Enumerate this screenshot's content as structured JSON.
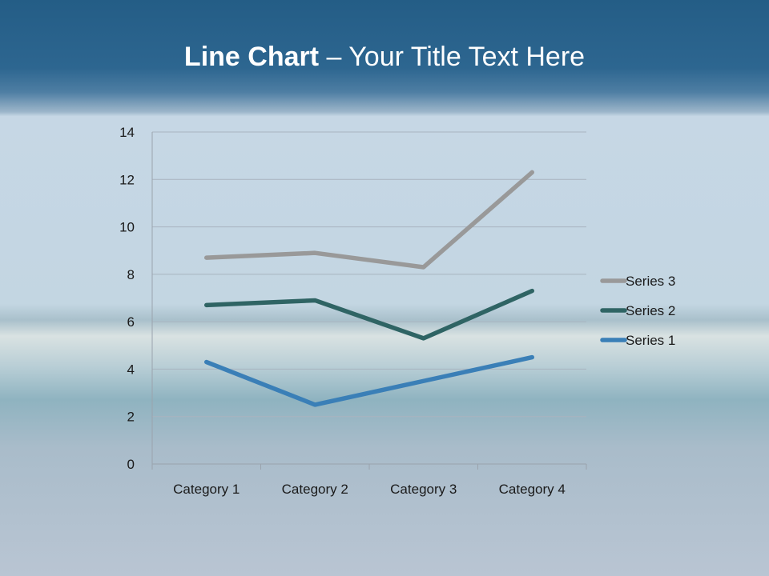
{
  "title": {
    "bold": "Line Chart",
    "rest": " – Your Title Text Here"
  },
  "chart_data": {
    "type": "line",
    "title": "",
    "xlabel": "",
    "ylabel": "",
    "categories": [
      "Category 1",
      "Category 2",
      "Category 3",
      "Category 4"
    ],
    "ylim": [
      0,
      14
    ],
    "yticks": [
      0,
      2,
      4,
      6,
      8,
      10,
      12,
      14
    ],
    "grid": true,
    "legend": "right",
    "series": [
      {
        "name": "Series 1",
        "values": [
          4.3,
          2.5,
          3.5,
          4.5
        ],
        "color": "#3a7fb7"
      },
      {
        "name": "Series 2",
        "values": [
          6.7,
          6.9,
          5.3,
          7.3
        ],
        "color": "#2f6464"
      },
      {
        "name": "Series 3",
        "values": [
          8.7,
          8.9,
          8.3,
          12.3
        ],
        "color": "#999999"
      }
    ]
  }
}
